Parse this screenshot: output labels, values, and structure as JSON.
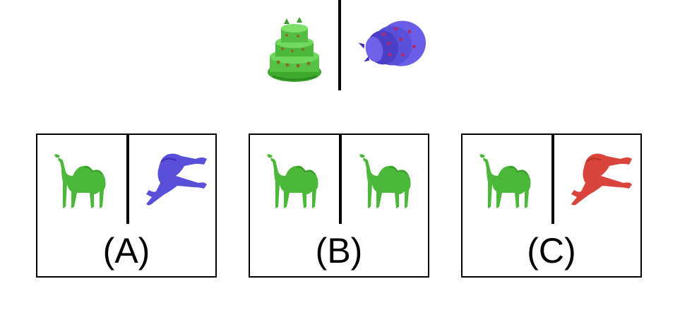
{
  "colors": {
    "green": "#4cb83a",
    "green_dark": "#3a9a2c",
    "purple": "#5a4fd8",
    "purple_dark": "#3f2fb0",
    "red": "#d9443c",
    "red_dark": "#b83028",
    "border": "#000000"
  },
  "example": {
    "left_icon": "cake-icon",
    "left_color": "green",
    "right_icon": "cake-icon",
    "right_color": "purple"
  },
  "options": [
    {
      "label": "(A)",
      "left_icon": "camel-icon",
      "left_color": "green",
      "right_icon": "camel-twisted-icon",
      "right_color": "purple"
    },
    {
      "label": "(B)",
      "left_icon": "camel-icon",
      "left_color": "green",
      "right_icon": "camel-icon",
      "right_color": "green"
    },
    {
      "label": "(C)",
      "left_icon": "camel-icon",
      "left_color": "green",
      "right_icon": "camel-twisted-icon",
      "right_color": "red"
    }
  ]
}
